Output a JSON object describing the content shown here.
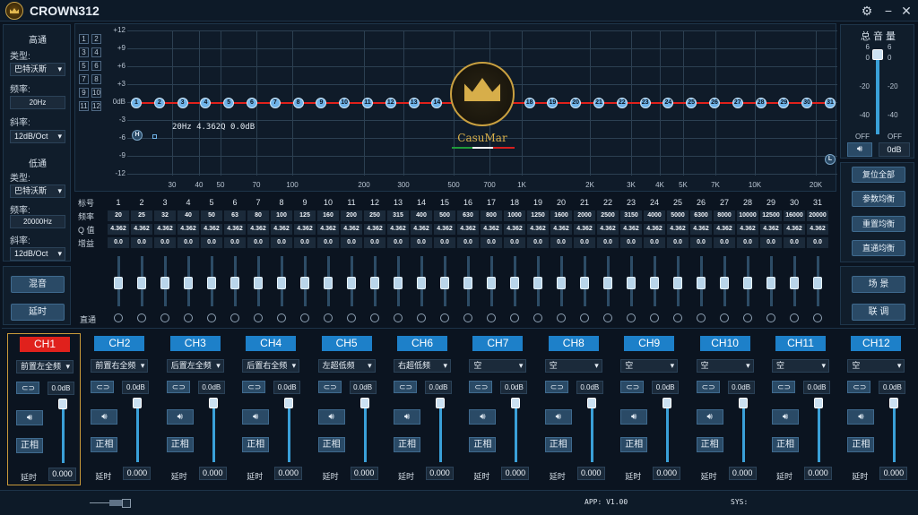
{
  "app": {
    "title": "CROWN312"
  },
  "highpass": {
    "title": "高通",
    "type_label": "类型:",
    "type_value": "巴特沃斯",
    "freq_label": "频率:",
    "freq_value": "20Hz",
    "slope_label": "斜率:",
    "slope_value": "12dB/Oct"
  },
  "lowpass": {
    "title": "低通",
    "type_label": "类型:",
    "type_value": "巴特沃斯",
    "freq_label": "频率:",
    "freq_value": "20000Hz",
    "slope_label": "斜率:",
    "slope_value": "12dB/Oct"
  },
  "left_buttons": {
    "mix": "混音",
    "delay": "延时"
  },
  "graph": {
    "number_boxes": [
      "1",
      "2",
      "3",
      "4",
      "5",
      "6",
      "7",
      "8",
      "9",
      "10",
      "11",
      "12"
    ],
    "y_ticks": [
      "+12",
      "+9",
      "+6",
      "+3",
      "0dB",
      "-3",
      "-6",
      "-9",
      "-12"
    ],
    "x_ticks": [
      "30",
      "40",
      "50",
      "70",
      "100",
      "200",
      "300",
      "500",
      "700",
      "1K",
      "2K",
      "3K",
      "4K",
      "5K",
      "7K",
      "10K",
      "20K"
    ],
    "node_labels": [
      "1",
      "2",
      "3",
      "4",
      "5",
      "6",
      "7",
      "8",
      "9",
      "10",
      "11",
      "12",
      "13",
      "14",
      "15",
      "16",
      "17",
      "18",
      "19",
      "20",
      "21",
      "22",
      "23",
      "24",
      "25",
      "26",
      "27",
      "28",
      "29",
      "30",
      "31"
    ],
    "highpass_marker": "H",
    "lowpass_marker": "L",
    "info": "20Hz 4.362Q 0.0dB",
    "brand": "CasuMar"
  },
  "eq_table": {
    "row_labels": {
      "band": "标号",
      "freq": "频率",
      "q": "Q 值",
      "gain": "增益",
      "bypass": "直通"
    },
    "bands": [
      "1",
      "2",
      "3",
      "4",
      "5",
      "6",
      "7",
      "8",
      "9",
      "10",
      "11",
      "12",
      "13",
      "14",
      "15",
      "16",
      "17",
      "18",
      "19",
      "20",
      "21",
      "22",
      "23",
      "24",
      "25",
      "26",
      "27",
      "28",
      "29",
      "30",
      "31"
    ],
    "freqs": [
      "20",
      "25",
      "32",
      "40",
      "50",
      "63",
      "80",
      "100",
      "125",
      "160",
      "200",
      "250",
      "315",
      "400",
      "500",
      "630",
      "800",
      "1000",
      "1250",
      "1600",
      "2000",
      "2500",
      "3150",
      "4000",
      "5000",
      "6300",
      "8000",
      "10000",
      "12500",
      "16000",
      "20000"
    ],
    "q": [
      "4.362",
      "4.362",
      "4.362",
      "4.362",
      "4.362",
      "4.362",
      "4.362",
      "4.362",
      "4.362",
      "4.362",
      "4.362",
      "4.362",
      "4.362",
      "4.362",
      "4.362",
      "4.362",
      "4.362",
      "4.362",
      "4.362",
      "4.362",
      "4.362",
      "4.362",
      "4.362",
      "4.362",
      "4.362",
      "4.362",
      "4.362",
      "4.362",
      "4.362",
      "4.362",
      "4.362"
    ],
    "gain": [
      "0.0",
      "0.0",
      "0.0",
      "0.0",
      "0.0",
      "0.0",
      "0.0",
      "0.0",
      "0.0",
      "0.0",
      "0.0",
      "0.0",
      "0.0",
      "0.0",
      "0.0",
      "0.0",
      "0.0",
      "0.0",
      "0.0",
      "0.0",
      "0.0",
      "0.0",
      "0.0",
      "0.0",
      "0.0",
      "0.0",
      "0.0",
      "0.0",
      "0.0",
      "0.0",
      "0.0"
    ]
  },
  "master": {
    "title": "总 音 量",
    "left_ticks": [
      "6",
      "0",
      "-20",
      "-40",
      "OFF"
    ],
    "right_ticks": [
      "6",
      "0",
      "-20",
      "-40",
      "OFF"
    ],
    "db_value": "0dB"
  },
  "right_buttons": {
    "reset_all": "复位全部",
    "param_eq": "参数均衡",
    "graphic_eq": "重置均衡",
    "bypass_eq": "直通均衡",
    "scene": "场 景",
    "link": "联 调"
  },
  "channels": [
    {
      "name": "CH1",
      "mode": "前置左全频",
      "db": "0.0dB",
      "phase": "正相",
      "delay_label": "延时",
      "delay": "0.000",
      "active": true
    },
    {
      "name": "CH2",
      "mode": "前置右全频",
      "db": "0.0dB",
      "phase": "正相",
      "delay_label": "延时",
      "delay": "0.000",
      "active": false
    },
    {
      "name": "CH3",
      "mode": "后置左全频",
      "db": "0.0dB",
      "phase": "正相",
      "delay_label": "延时",
      "delay": "0.000",
      "active": false
    },
    {
      "name": "CH4",
      "mode": "后置右全频",
      "db": "0.0dB",
      "phase": "正相",
      "delay_label": "延时",
      "delay": "0.000",
      "active": false
    },
    {
      "name": "CH5",
      "mode": "左超低频",
      "db": "0.0dB",
      "phase": "正相",
      "delay_label": "延时",
      "delay": "0.000",
      "active": false
    },
    {
      "name": "CH6",
      "mode": "右超低频",
      "db": "0.0dB",
      "phase": "正相",
      "delay_label": "延时",
      "delay": "0.000",
      "active": false
    },
    {
      "name": "CH7",
      "mode": "空",
      "db": "0.0dB",
      "phase": "正相",
      "delay_label": "延时",
      "delay": "0.000",
      "active": false
    },
    {
      "name": "CH8",
      "mode": "空",
      "db": "0.0dB",
      "phase": "正相",
      "delay_label": "延时",
      "delay": "0.000",
      "active": false
    },
    {
      "name": "CH9",
      "mode": "空",
      "db": "0.0dB",
      "phase": "正相",
      "delay_label": "延时",
      "delay": "0.000",
      "active": false
    },
    {
      "name": "CH10",
      "mode": "空",
      "db": "0.0dB",
      "phase": "正相",
      "delay_label": "延时",
      "delay": "0.000",
      "active": false
    },
    {
      "name": "CH11",
      "mode": "空",
      "db": "0.0dB",
      "phase": "正相",
      "delay_label": "延时",
      "delay": "0.000",
      "active": false
    },
    {
      "name": "CH12",
      "mode": "空",
      "db": "0.0dB",
      "phase": "正相",
      "delay_label": "延时",
      "delay": "0.000",
      "active": false
    }
  ],
  "status": {
    "app": "APP: V1.00",
    "sys": "SYS:"
  },
  "colors": {
    "accent": "#1d80c9",
    "active_channel": "#e0211c",
    "eq_curve": "#e0211c",
    "node": "#6fb3e8"
  }
}
